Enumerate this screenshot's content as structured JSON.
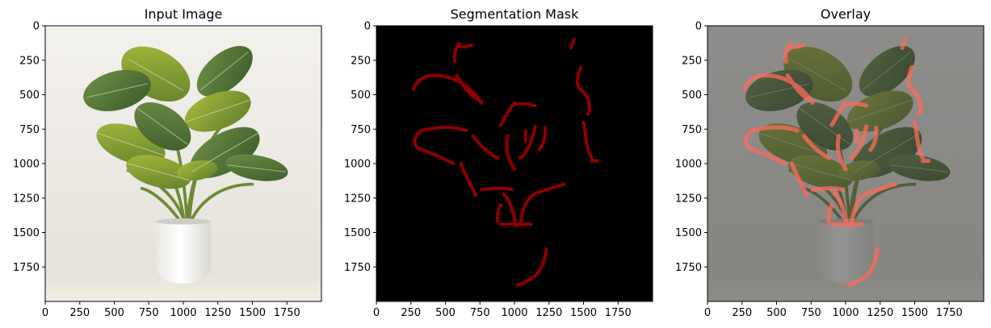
{
  "figure": {
    "panels": [
      {
        "title": "Input Image",
        "content": "input-photo",
        "x_ticks": [
          "0",
          "250",
          "500",
          "750",
          "1000",
          "1250",
          "1500",
          "1750"
        ],
        "y_ticks": [
          "0",
          "250",
          "500",
          "750",
          "1000",
          "1250",
          "1500",
          "1750"
        ]
      },
      {
        "title": "Segmentation Mask",
        "content": "mask",
        "x_ticks": [
          "0",
          "250",
          "500",
          "750",
          "1000",
          "1250",
          "1500",
          "1750"
        ],
        "y_ticks": [
          "0",
          "250",
          "500",
          "750",
          "1000",
          "1250",
          "1500",
          "1750"
        ]
      },
      {
        "title": "Overlay",
        "content": "overlay",
        "x_ticks": [
          "0",
          "250",
          "500",
          "750",
          "1000",
          "1250",
          "1500",
          "1750"
        ],
        "y_ticks": [
          "0",
          "250",
          "500",
          "750",
          "1000",
          "1250",
          "1500",
          "1750"
        ]
      }
    ],
    "image_extent": [
      0,
      2000
    ],
    "tick_values": [
      0,
      250,
      500,
      750,
      1000,
      1250,
      1500,
      1750
    ],
    "colors": {
      "mask_background": "#000000",
      "mask_edge": "#8b0000",
      "overlay_edge": "#ff6a5a",
      "leaf_dark": "#4a6a2a",
      "leaf_light": "#9bb03a",
      "pot": "#f2f1ec"
    }
  }
}
